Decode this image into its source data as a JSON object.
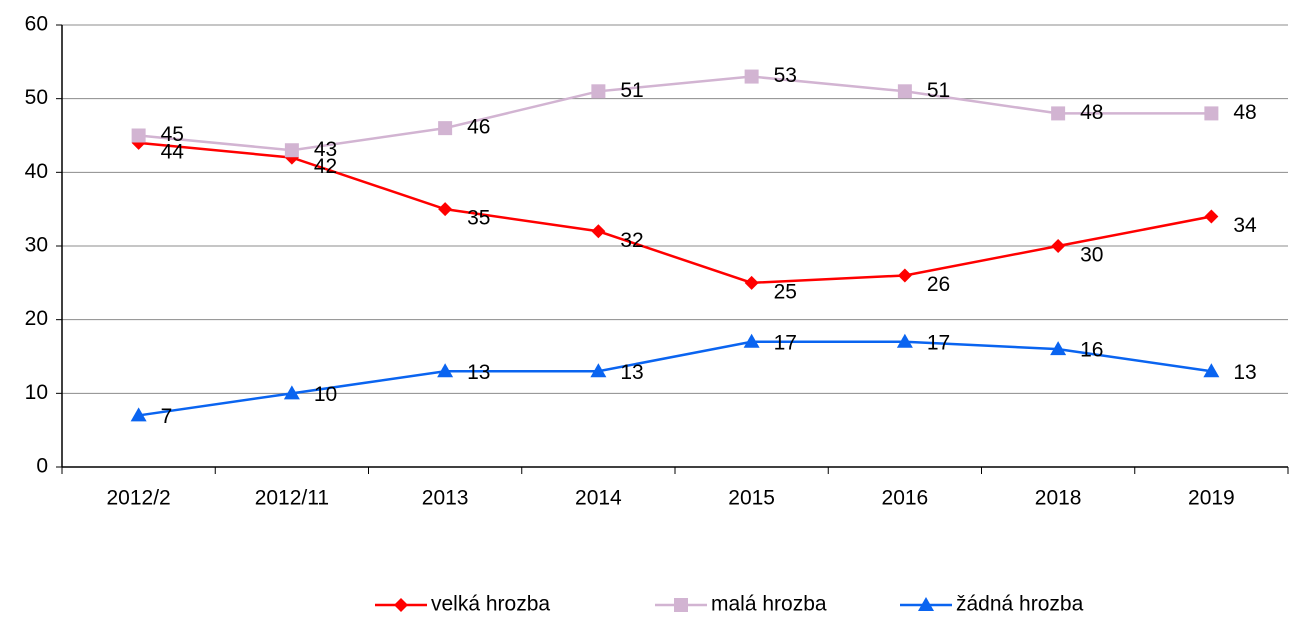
{
  "chart_data": {
    "type": "line",
    "categories": [
      "2012/2",
      "2012/11",
      "2013",
      "2014",
      "2015",
      "2016",
      "2018",
      "2019"
    ],
    "series": [
      {
        "name": "velká hrozba",
        "color": "#ff0000",
        "marker": "diamond",
        "values": [
          44,
          42,
          35,
          32,
          25,
          26,
          30,
          34
        ]
      },
      {
        "name": "malá hrozba",
        "color": "#d2b4d2",
        "marker": "square",
        "values": [
          45,
          43,
          46,
          51,
          53,
          51,
          48,
          48
        ]
      },
      {
        "name": "žádná hrozba",
        "color": "#0a64f0",
        "marker": "triangle",
        "values": [
          7,
          10,
          13,
          13,
          17,
          17,
          16,
          13
        ]
      }
    ],
    "ylim": [
      0,
      60
    ],
    "yticks": [
      0,
      10,
      20,
      30,
      40,
      50,
      60
    ],
    "grid": true,
    "legend": "bottom"
  }
}
